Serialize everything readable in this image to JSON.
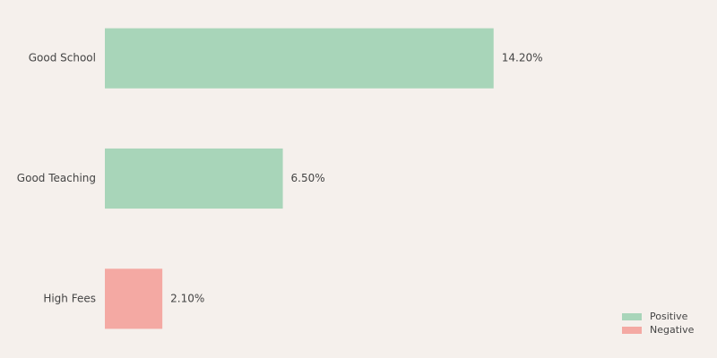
{
  "chart_data": {
    "type": "barh",
    "categories": [
      "Good School",
      "Good Teaching",
      "High Fees"
    ],
    "series": [
      {
        "name": "Positive",
        "color": "#a8d5b9",
        "values": [
          14.2,
          6.5,
          null
        ],
        "value_labels": [
          "14.20%",
          "6.50%",
          null
        ]
      },
      {
        "name": "Negative",
        "color": "#f4a9a3",
        "values": [
          null,
          null,
          2.1
        ],
        "value_labels": [
          null,
          null,
          "2.10%"
        ]
      }
    ],
    "xlim": [
      0,
      22
    ],
    "legend": "lower right"
  }
}
